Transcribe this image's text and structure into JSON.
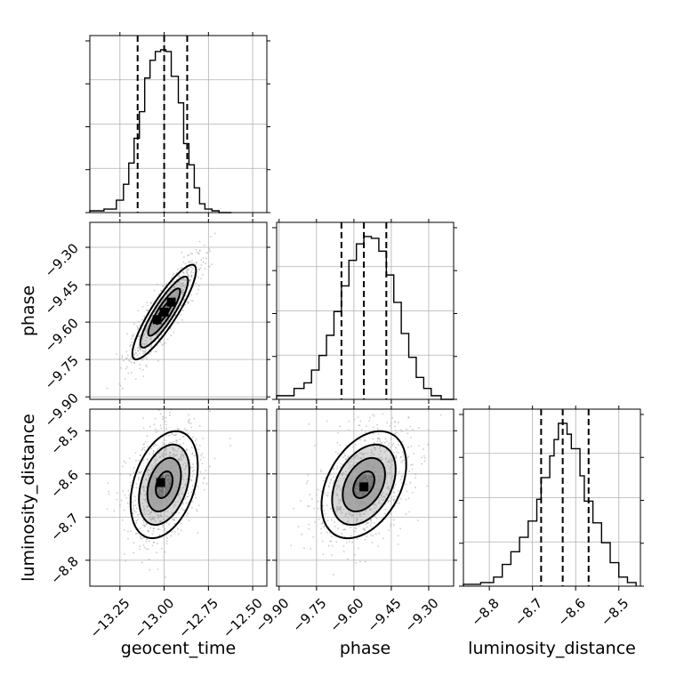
{
  "chart_data": {
    "type": "corner",
    "parameters": [
      "geocent_time",
      "phase",
      "luminosity_distance"
    ],
    "ranges": {
      "geocent_time": [
        -13.42,
        -12.42
      ],
      "phase": [
        -9.91,
        -9.2
      ],
      "luminosity_distance": [
        -8.86,
        -8.45
      ]
    },
    "ticks": {
      "geocent_time": [
        -13.25,
        -13.0,
        -12.75,
        -12.5
      ],
      "phase": [
        -9.9,
        -9.75,
        -9.6,
        -9.45,
        -9.3
      ],
      "luminosity_distance": [
        -8.8,
        -8.7,
        -8.6,
        -8.5
      ]
    },
    "tick_labels": {
      "geocent_time": [
        "−13.25",
        "−13.00",
        "−12.75",
        "−12.50"
      ],
      "phase": [
        "−9.90",
        "−9.75",
        "−9.60",
        "−9.45",
        "−9.30"
      ],
      "luminosity_distance": [
        "−8.8",
        "−8.7",
        "−8.6",
        "−8.5"
      ]
    },
    "axis_labels": {
      "geocent_time": "geocent_time",
      "phase": "phase",
      "luminosity_distance": "luminosity_distance"
    },
    "grid": true,
    "quantiles": {
      "geocent_time": [
        -13.15,
        -13.0,
        -12.87
      ],
      "phase": [
        -9.65,
        -9.56,
        -9.47
      ],
      "luminosity_distance": [
        -8.68,
        -8.63,
        -8.57
      ]
    },
    "histograms": {
      "geocent_time": {
        "edges": [
          -13.42,
          -13.34,
          -13.27,
          -13.23,
          -13.2,
          -13.17,
          -13.14,
          -13.11,
          -13.08,
          -13.05,
          -13.02,
          -12.99,
          -12.96,
          -12.92,
          -12.89,
          -12.86,
          -12.83,
          -12.8,
          -12.77,
          -12.73,
          -12.69,
          -12.62
        ],
        "counts": [
          0.01,
          0.02,
          0.07,
          0.16,
          0.28,
          0.42,
          0.57,
          0.76,
          0.86,
          0.91,
          0.92,
          0.91,
          0.77,
          0.62,
          0.39,
          0.27,
          0.14,
          0.05,
          0.02,
          0.01,
          0.0
        ]
      },
      "phase": {
        "edges": [
          -9.91,
          -9.84,
          -9.8,
          -9.77,
          -9.74,
          -9.71,
          -9.68,
          -9.65,
          -9.62,
          -9.59,
          -9.56,
          -9.53,
          -9.5,
          -9.47,
          -9.44,
          -9.41,
          -9.38,
          -9.35,
          -9.32,
          -9.29,
          -9.25,
          -9.2
        ],
        "counts": [
          0.02,
          0.06,
          0.09,
          0.16,
          0.24,
          0.35,
          0.48,
          0.62,
          0.76,
          0.85,
          0.89,
          0.88,
          0.81,
          0.68,
          0.53,
          0.36,
          0.23,
          0.12,
          0.06,
          0.02,
          0.0
        ]
      },
      "luminosity_distance": {
        "edges": [
          -8.86,
          -8.82,
          -8.79,
          -8.77,
          -8.75,
          -8.73,
          -8.71,
          -8.69,
          -8.68,
          -8.66,
          -8.65,
          -8.64,
          -8.62,
          -8.61,
          -8.59,
          -8.58,
          -8.56,
          -8.54,
          -8.52,
          -8.5,
          -8.48,
          -8.46
        ],
        "counts": [
          0.01,
          0.02,
          0.05,
          0.12,
          0.19,
          0.27,
          0.36,
          0.48,
          0.6,
          0.72,
          0.81,
          0.9,
          0.84,
          0.76,
          0.61,
          0.47,
          0.35,
          0.24,
          0.13,
          0.05,
          0.02
        ]
      }
    },
    "pairs": [
      {
        "x": "geocent_time",
        "y": "phase",
        "center": [
          -13.0,
          -9.56
        ],
        "sigma": [
          0.09,
          0.095
        ],
        "rho": 0.88,
        "contour_levels": [
          0.5,
          1.0,
          1.5,
          2.0
        ],
        "peak_bins": [
          [
            -13.04,
            -9.59
          ],
          [
            -13.0,
            -9.56
          ],
          [
            -12.96,
            -9.52
          ]
        ]
      },
      {
        "x": "geocent_time",
        "y": "luminosity_distance",
        "center": [
          -13.0,
          -8.625
        ],
        "sigma": [
          0.095,
          0.062
        ],
        "rho": 0.35,
        "contour_levels": [
          0.5,
          1.0,
          1.5,
          2.0
        ],
        "peak_bins": [
          [
            -13.02,
            -8.62
          ]
        ]
      },
      {
        "x": "phase",
        "y": "luminosity_distance",
        "center": [
          -9.56,
          -8.625
        ],
        "sigma": [
          0.085,
          0.062
        ],
        "rho": 0.38,
        "contour_levels": [
          0.5,
          1.0,
          1.5,
          2.0
        ],
        "peak_bins": [
          [
            -9.56,
            -8.63
          ]
        ]
      }
    ]
  }
}
